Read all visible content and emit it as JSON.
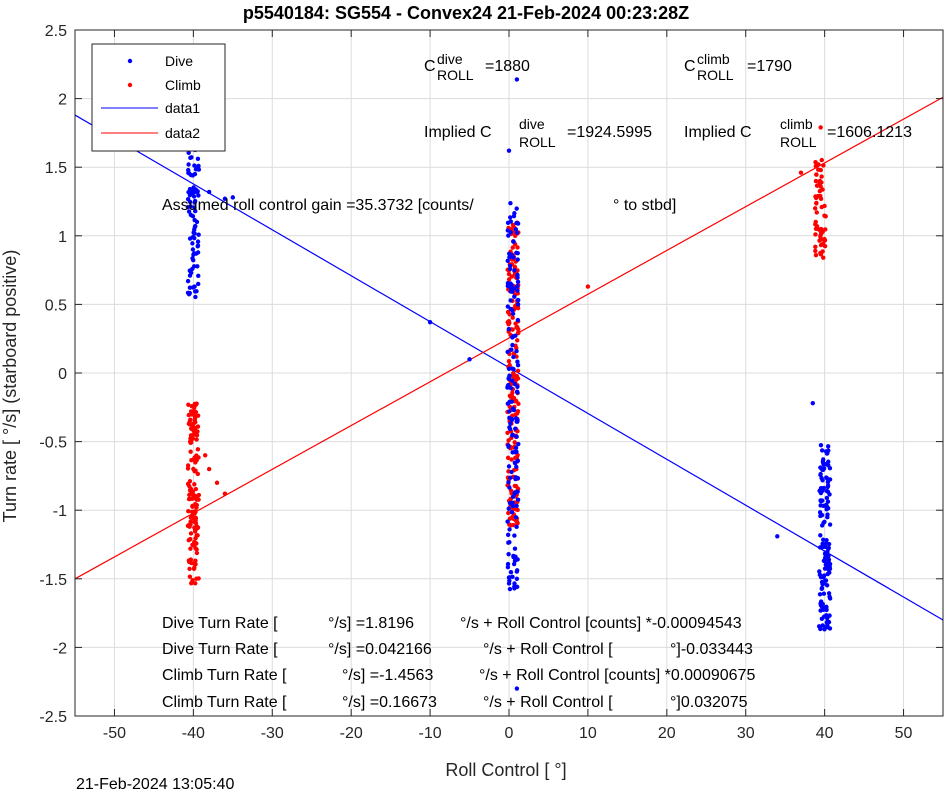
{
  "chart_data": {
    "type": "scatter",
    "title": "p5540184: SG554 - Convex24 21-Feb-2024 00:23:28Z",
    "xlabel": "Roll Control [   °]",
    "ylabel": "Turn rate [   °/s] (starboard positive)",
    "xlim": [
      -55,
      55
    ],
    "ylim": [
      -2.5,
      2.5
    ],
    "xticks": [
      -50,
      -40,
      -30,
      -20,
      -10,
      0,
      10,
      20,
      30,
      40,
      50
    ],
    "yticks": [
      -2.5,
      -2,
      -1.5,
      -1,
      -0.5,
      0,
      0.5,
      1,
      1.5,
      2,
      2.5
    ],
    "xtick_labels": [
      "-50",
      "-40",
      "-30",
      "-20",
      "-10",
      "0",
      "10",
      "20",
      "30",
      "40",
      "50"
    ],
    "ytick_labels": [
      "-2.5",
      "-2",
      "-1.5",
      "-1",
      "-0.5",
      "0",
      "0.5",
      "1",
      "1.5",
      "2",
      "2.5"
    ],
    "grid": true,
    "legend_position": "top-left",
    "series": [
      {
        "name": "Dive",
        "style": "points",
        "color": "#0000ff",
        "clusters": [
          {
            "x": -40,
            "y_min": 0.53,
            "y_max": 1.75,
            "n": 90
          },
          {
            "x": 0.5,
            "y_min": -1.58,
            "y_max": 1.25,
            "n": 160
          },
          {
            "x": 40,
            "y_min": -1.87,
            "y_max": -0.52,
            "n": 150
          }
        ],
        "points": [
          {
            "x": -38,
            "y": 1.32
          },
          {
            "x": -36,
            "y": 1.27
          },
          {
            "x": -35,
            "y": 1.28
          },
          {
            "x": -10,
            "y": 0.37
          },
          {
            "x": -5,
            "y": 0.1
          },
          {
            "x": 0,
            "y": 1.62
          },
          {
            "x": 1,
            "y": 2.14
          },
          {
            "x": 1,
            "y": -2.3
          },
          {
            "x": 1,
            "y": -1.5
          },
          {
            "x": 34,
            "y": -1.19
          },
          {
            "x": 38.5,
            "y": -0.22
          }
        ]
      },
      {
        "name": "Climb",
        "style": "points",
        "color": "#ff0000",
        "clusters": [
          {
            "x": -40,
            "y_min": -1.54,
            "y_max": -0.22,
            "n": 150
          },
          {
            "x": 0.5,
            "y_min": -1.12,
            "y_max": 1.1,
            "n": 200
          },
          {
            "x": 39.5,
            "y_min": 0.84,
            "y_max": 1.6,
            "n": 60
          }
        ],
        "points": [
          {
            "x": -38,
            "y": -0.7
          },
          {
            "x": -37,
            "y": -0.8
          },
          {
            "x": -36,
            "y": -0.88
          },
          {
            "x": -38.5,
            "y": -0.6
          },
          {
            "x": 10,
            "y": 0.63
          },
          {
            "x": 37,
            "y": 1.46
          },
          {
            "x": 39.5,
            "y": 1.79
          },
          {
            "x": 1,
            "y": -1.06
          }
        ]
      },
      {
        "name": "data1",
        "style": "line",
        "color": "#0000ff",
        "x": [
          -55,
          55
        ],
        "y": [
          1.88,
          -1.8
        ]
      },
      {
        "name": "data2",
        "style": "line",
        "color": "#ff0000",
        "x": [
          -55,
          55
        ],
        "y": [
          -1.5,
          2.01
        ]
      }
    ],
    "annotations": {
      "c_roll_dive_base": "C",
      "c_roll_dive_sup": "dive",
      "c_roll_dive_sub": "ROLL",
      "c_roll_dive_val": "=1880",
      "c_roll_climb_base": "C",
      "c_roll_climb_sup": "climb",
      "c_roll_climb_sub": "ROLL",
      "c_roll_climb_val": "=1790",
      "implied_dive_base": "Implied C",
      "implied_dive_sup": "dive",
      "implied_dive_sub": "ROLL",
      "implied_dive_val": "=1924.5995",
      "implied_climb_base": "Implied C",
      "implied_climb_sup": "climb",
      "implied_climb_sub": "ROLL",
      "implied_climb_val": "=1606.1213",
      "gain_a": "Assumed roll control gain =35.3732 [counts/",
      "gain_b": "° to stbd]",
      "fit1_a": "Dive Turn Rate [",
      "fit1_b": "°/s] =1.8196",
      "fit1_c": "°/s + Roll Control [counts] *-0.00094543",
      "fit2_a": "Dive Turn Rate [",
      "fit2_b": "°/s] =0.042166",
      "fit2_c": "°/s + Roll Control [",
      "fit2_d": "°]-0.033443",
      "fit3_a": "Climb Turn Rate [",
      "fit3_b": "°/s] =-1.4563",
      "fit3_c": "°/s + Roll Control [counts] *0.00090675",
      "fit4_a": "Climb Turn Rate [",
      "fit4_b": "°/s] =0.16673",
      "fit4_c": "°/s + Roll Control [",
      "fit4_d": "°]0.032075"
    },
    "footer": "21-Feb-2024 13:05:40"
  }
}
